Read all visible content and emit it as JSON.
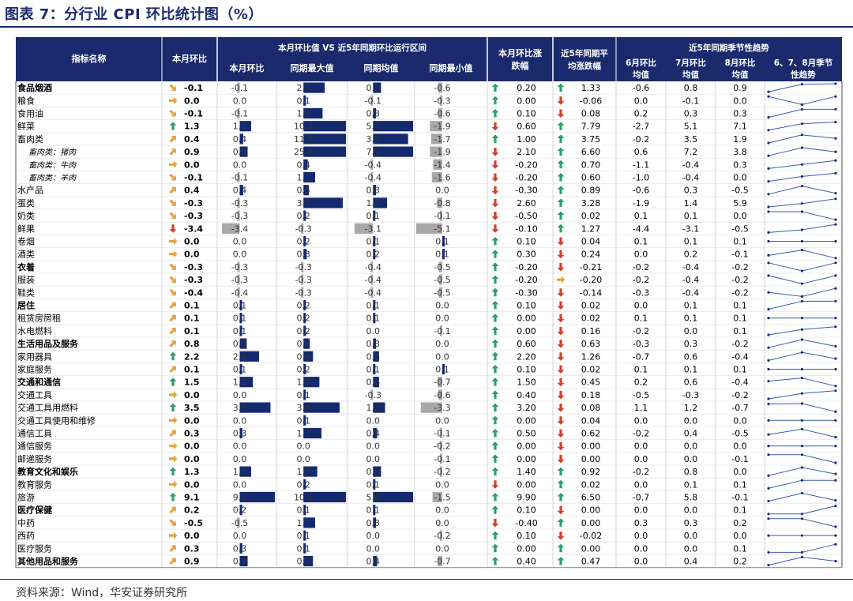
{
  "title": "图表 7：分行业 CPI 环比统计图（%）",
  "source": "资料来源：Wind，华安证券研究所",
  "colors": {
    "header": "#1a2a6c",
    "bar_pos": "#142a6e",
    "bar_neg": "#a8a8a8",
    "arrow_up": "#2e9e6e",
    "arrow_down": "#d1402a",
    "arrow_up_right": "#e8a23a",
    "arrow_right": "#e8a23a",
    "arrow_down_right": "#e8a23a"
  },
  "headers": {
    "name": "指标名称",
    "current": "本月环比",
    "group1": "本月环比值 VS 近5年同期环比运行区间",
    "g1_cols": [
      "本月环比",
      "同期最大值",
      "同期均值",
      "同期最小值"
    ],
    "diff": "本月环比涨跌幅",
    "avg5": "近5年同期平均涨跌幅",
    "group2": "近5年同期季节性趋势",
    "g2_cols": [
      "6月环比均值",
      "7月环比均值",
      "8月环比均值",
      "6、7、8月季节性趋势"
    ]
  },
  "rows": [
    {
      "name": "食品烟酒",
      "bold": true,
      "indent": false,
      "cur": "-0.1",
      "arrow": "down-right",
      "c1": "-0.1",
      "c2": "2.0",
      "c3": "0.8",
      "c4": "-0.6",
      "diff_dir": "up",
      "diff": "0.20",
      "avg_dir": "up",
      "avg": "1.33",
      "m6": "-0.6",
      "m7": "0.8",
      "m8": "0.9"
    },
    {
      "name": "粮食",
      "bold": false,
      "indent": false,
      "cur": "0.0",
      "arrow": "right",
      "c1": "0.0",
      "c2": "0.1",
      "c3": "-0.1",
      "c4": "-0.3",
      "diff_dir": "up",
      "diff": "0.00",
      "avg_dir": "down",
      "avg": "-0.06",
      "m6": "0.0",
      "m7": "-0.1",
      "m8": "0.0"
    },
    {
      "name": "食用油",
      "bold": false,
      "indent": false,
      "cur": "-0.1",
      "arrow": "down-right",
      "c1": "-0.1",
      "c2": "1.8",
      "c3": "0.3",
      "c4": "-0.6",
      "diff_dir": "up",
      "diff": "0.10",
      "avg_dir": "down",
      "avg": "0.08",
      "m6": "0.2",
      "m7": "0.3",
      "m8": "0.3"
    },
    {
      "name": "鲜菜",
      "bold": false,
      "indent": false,
      "cur": "1.3",
      "arrow": "up",
      "c1": "1.3",
      "c2": "10.3",
      "c3": "5.1",
      "c4": "-1.9",
      "diff_dir": "down",
      "diff": "0.60",
      "avg_dir": "up",
      "avg": "7.79",
      "m6": "-2.7",
      "m7": "5.1",
      "m8": "7.1"
    },
    {
      "name": "畜肉类",
      "bold": false,
      "indent": false,
      "cur": "0.4",
      "arrow": "up-right",
      "c1": "0.4",
      "c2": "11.8",
      "c3": "3.5",
      "c4": "-1.7",
      "diff_dir": "up",
      "diff": "1.00",
      "avg_dir": "up",
      "avg": "3.75",
      "m6": "-0.2",
      "m7": "3.5",
      "m8": "1.9"
    },
    {
      "name": "畜肉类：猪肉",
      "bold": false,
      "indent": true,
      "cur": "0.9",
      "arrow": "up-right",
      "c1": "0.9",
      "c2": "25.6",
      "c3": "7.2",
      "c4": "-1.9",
      "diff_dir": "down",
      "diff": "2.10",
      "avg_dir": "up",
      "avg": "6.60",
      "m6": "0.6",
      "m7": "7.2",
      "m8": "3.8"
    },
    {
      "name": "畜肉类：牛肉",
      "bold": false,
      "indent": true,
      "cur": "0.0",
      "arrow": "right",
      "c1": "0.0",
      "c2": "0.4",
      "c3": "-0.4",
      "c4": "-1.4",
      "diff_dir": "down",
      "diff": "-0.20",
      "avg_dir": "up",
      "avg": "0.70",
      "m6": "-1.1",
      "m7": "-0.4",
      "m8": "0.3"
    },
    {
      "name": "畜肉类：羊肉",
      "bold": false,
      "indent": true,
      "cur": "-0.1",
      "arrow": "down-right",
      "c1": "-0.1",
      "c2": "1.1",
      "c3": "-0.4",
      "c4": "-1.6",
      "diff_dir": "down",
      "diff": "-0.20",
      "avg_dir": "up",
      "avg": "0.60",
      "m6": "-1.0",
      "m7": "-0.4",
      "m8": "0.0"
    },
    {
      "name": "水产品",
      "bold": false,
      "indent": false,
      "cur": "0.4",
      "arrow": "up-right",
      "c1": "0.4",
      "c2": "0.5",
      "c3": "0.3",
      "c4": "0.0",
      "diff_dir": "down",
      "diff": "-0.30",
      "avg_dir": "up",
      "avg": "0.89",
      "m6": "-0.6",
      "m7": "0.3",
      "m8": "-0.5"
    },
    {
      "name": "蛋类",
      "bold": false,
      "indent": false,
      "cur": "-0.3",
      "arrow": "down-right",
      "c1": "-0.3",
      "c2": "3.7",
      "c3": "1.4",
      "c4": "-0.8",
      "diff_dir": "down",
      "diff": "2.60",
      "avg_dir": "up",
      "avg": "3.28",
      "m6": "-1.9",
      "m7": "1.4",
      "m8": "5.9"
    },
    {
      "name": "奶类",
      "bold": false,
      "indent": false,
      "cur": "-0.3",
      "arrow": "down-right",
      "c1": "-0.3",
      "c2": "0.2",
      "c3": "0.1",
      "c4": "-0.1",
      "diff_dir": "down",
      "diff": "-0.50",
      "avg_dir": "up",
      "avg": "0.02",
      "m6": "0.1",
      "m7": "0.1",
      "m8": "0.0"
    },
    {
      "name": "鲜果",
      "bold": false,
      "indent": false,
      "cur": "-3.4",
      "arrow": "down",
      "c1": "-3.4",
      "c2": "-0.3",
      "c3": "-3.1",
      "c4": "-5.1",
      "diff_dir": "down",
      "diff": "-0.10",
      "avg_dir": "up",
      "avg": "1.27",
      "m6": "-4.4",
      "m7": "-3.1",
      "m8": "-0.5"
    },
    {
      "name": "卷烟",
      "bold": false,
      "indent": false,
      "cur": "0.0",
      "arrow": "right",
      "c1": "0.0",
      "c2": "0.2",
      "c3": "0.1",
      "c4": "0.1",
      "diff_dir": "up",
      "diff": "0.10",
      "avg_dir": "down",
      "avg": "0.04",
      "m6": "0.1",
      "m7": "0.1",
      "m8": "0.1"
    },
    {
      "name": "酒类",
      "bold": false,
      "indent": false,
      "cur": "0.0",
      "arrow": "right",
      "c1": "0.0",
      "c2": "0.3",
      "c3": "0.2",
      "c4": "0.1",
      "diff_dir": "up",
      "diff": "0.30",
      "avg_dir": "down",
      "avg": "0.24",
      "m6": "0.0",
      "m7": "0.2",
      "m8": "-0.1"
    },
    {
      "name": "衣着",
      "bold": true,
      "indent": false,
      "cur": "-0.3",
      "arrow": "down-right",
      "c1": "-0.3",
      "c2": "-0.3",
      "c3": "-0.4",
      "c4": "-0.5",
      "diff_dir": "up",
      "diff": "-0.20",
      "avg_dir": "down",
      "avg": "-0.21",
      "m6": "-0.2",
      "m7": "-0.4",
      "m8": "-0.2"
    },
    {
      "name": "服装",
      "bold": false,
      "indent": false,
      "cur": "-0.3",
      "arrow": "down-right",
      "c1": "-0.3",
      "c2": "-0.3",
      "c3": "-0.4",
      "c4": "-0.5",
      "diff_dir": "up",
      "diff": "-0.20",
      "avg_dir": "right",
      "avg": "-0.20",
      "m6": "-0.2",
      "m7": "-0.4",
      "m8": "-0.2"
    },
    {
      "name": "鞋类",
      "bold": false,
      "indent": false,
      "cur": "-0.4",
      "arrow": "down-right",
      "c1": "-0.4",
      "c2": "-0.3",
      "c3": "-0.4",
      "c4": "-0.5",
      "diff_dir": "up",
      "diff": "-0.30",
      "avg_dir": "down",
      "avg": "-0.14",
      "m6": "-0.3",
      "m7": "-0.4",
      "m8": "-0.2"
    },
    {
      "name": "居住",
      "bold": true,
      "indent": false,
      "cur": "0.1",
      "arrow": "up-right",
      "c1": "0.1",
      "c2": "0.2",
      "c3": "0.1",
      "c4": "0.0",
      "diff_dir": "up",
      "diff": "0.10",
      "avg_dir": "down",
      "avg": "0.02",
      "m6": "0.0",
      "m7": "0.1",
      "m8": "0.1"
    },
    {
      "name": "租赁房房租",
      "bold": false,
      "indent": false,
      "cur": "0.1",
      "arrow": "up-right",
      "c1": "0.1",
      "c2": "0.2",
      "c3": "0.1",
      "c4": "0.0",
      "diff_dir": "up",
      "diff": "0.00",
      "avg_dir": "down",
      "avg": "0.02",
      "m6": "0.1",
      "m7": "0.1",
      "m8": "0.1"
    },
    {
      "name": "水电燃料",
      "bold": false,
      "indent": false,
      "cur": "0.1",
      "arrow": "up-right",
      "c1": "0.1",
      "c2": "0.2",
      "c3": "0.0",
      "c4": "-0.1",
      "diff_dir": "up",
      "diff": "0.00",
      "avg_dir": "down",
      "avg": "0.16",
      "m6": "-0.2",
      "m7": "0.0",
      "m8": "0.1"
    },
    {
      "name": "生活用品及服务",
      "bold": true,
      "indent": false,
      "cur": "0.8",
      "arrow": "up-right",
      "c1": "0.8",
      "c2": "0.6",
      "c3": "0.3",
      "c4": "0.0",
      "diff_dir": "up",
      "diff": "0.60",
      "avg_dir": "down",
      "avg": "0.63",
      "m6": "-0.3",
      "m7": "0.3",
      "m8": "-0.2"
    },
    {
      "name": "家用器具",
      "bold": false,
      "indent": false,
      "cur": "2.2",
      "arrow": "up",
      "c1": "2.2",
      "c2": "0.9",
      "c3": "0.6",
      "c4": "0.0",
      "diff_dir": "up",
      "diff": "2.20",
      "avg_dir": "down",
      "avg": "1.26",
      "m6": "-0.7",
      "m7": "0.6",
      "m8": "-0.4"
    },
    {
      "name": "家庭服务",
      "bold": false,
      "indent": false,
      "cur": "0.1",
      "arrow": "up-right",
      "c1": "0.1",
      "c2": "0.2",
      "c3": "0.1",
      "c4": "0.1",
      "diff_dir": "up",
      "diff": "0.10",
      "avg_dir": "down",
      "avg": "0.02",
      "m6": "0.1",
      "m7": "0.1",
      "m8": "0.1"
    },
    {
      "name": "交通和通信",
      "bold": true,
      "indent": false,
      "cur": "1.5",
      "arrow": "up",
      "c1": "1.5",
      "c2": "1.5",
      "c3": "0.6",
      "c4": "-0.7",
      "diff_dir": "up",
      "diff": "1.50",
      "avg_dir": "down",
      "avg": "0.45",
      "m6": "0.2",
      "m7": "0.6",
      "m8": "-0.4"
    },
    {
      "name": "交通工具",
      "bold": false,
      "indent": false,
      "cur": "0.0",
      "arrow": "right",
      "c1": "0.0",
      "c2": "0.1",
      "c3": "-0.3",
      "c4": "-0.6",
      "diff_dir": "up",
      "diff": "0.40",
      "avg_dir": "down",
      "avg": "0.18",
      "m6": "-0.5",
      "m7": "-0.3",
      "m8": "-0.2"
    },
    {
      "name": "交通工具用燃料",
      "bold": false,
      "indent": false,
      "cur": "3.5",
      "arrow": "up",
      "c1": "3.5",
      "c2": "3.4",
      "c3": "1.2",
      "c4": "-3.3",
      "diff_dir": "up",
      "diff": "3.20",
      "avg_dir": "down",
      "avg": "0.08",
      "m6": "1.1",
      "m7": "1.2",
      "m8": "-0.7"
    },
    {
      "name": "交通工具使用和维修",
      "bold": false,
      "indent": false,
      "cur": "0.0",
      "arrow": "right",
      "c1": "0.0",
      "c2": "0.1",
      "c3": "0.0",
      "c4": "0.0",
      "diff_dir": "up",
      "diff": "0.00",
      "avg_dir": "down",
      "avg": "0.04",
      "m6": "0.0",
      "m7": "0.0",
      "m8": "0.0"
    },
    {
      "name": "通信工具",
      "bold": false,
      "indent": false,
      "cur": "0.3",
      "arrow": "up-right",
      "c1": "0.3",
      "c2": "1.7",
      "c3": "0.4",
      "c4": "-0.1",
      "diff_dir": "up",
      "diff": "0.50",
      "avg_dir": "down",
      "avg": "0.62",
      "m6": "-0.2",
      "m7": "0.4",
      "m8": "-0.5"
    },
    {
      "name": "通信服务",
      "bold": false,
      "indent": false,
      "cur": "0.0",
      "arrow": "right",
      "c1": "0.0",
      "c2": "0.0",
      "c3": "0.0",
      "c4": "-0.2",
      "diff_dir": "up",
      "diff": "0.00",
      "avg_dir": "down",
      "avg": "0.00",
      "m6": "0.0",
      "m7": "0.0",
      "m8": "0.0"
    },
    {
      "name": "邮递服务",
      "bold": false,
      "indent": false,
      "cur": "0.0",
      "arrow": "right",
      "c1": "0.0",
      "c2": "0.0",
      "c3": "0.0",
      "c4": "-0.1",
      "diff_dir": "up",
      "diff": "0.00",
      "avg_dir": "down",
      "avg": "0.00",
      "m6": "0.0",
      "m7": "0.0",
      "m8": "-0.1"
    },
    {
      "name": "教育文化和娱乐",
      "bold": true,
      "indent": false,
      "cur": "1.3",
      "arrow": "up",
      "c1": "1.3",
      "c2": "1.3",
      "c3": "0.8",
      "c4": "-0.2",
      "diff_dir": "up",
      "diff": "1.40",
      "avg_dir": "up",
      "avg": "0.92",
      "m6": "-0.2",
      "m7": "0.8",
      "m8": "0.0"
    },
    {
      "name": "教育服务",
      "bold": false,
      "indent": false,
      "cur": "0.0",
      "arrow": "right",
      "c1": "0.0",
      "c2": "0.2",
      "c3": "0.1",
      "c4": "0.0",
      "diff_dir": "down",
      "diff": "0.00",
      "avg_dir": "up",
      "avg": "0.02",
      "m6": "0.0",
      "m7": "0.1",
      "m8": "0.1"
    },
    {
      "name": "旅游",
      "bold": false,
      "indent": false,
      "cur": "9.1",
      "arrow": "up",
      "c1": "9.1",
      "c2": "10.1",
      "c3": "5.8",
      "c4": "-1.5",
      "diff_dir": "up",
      "diff": "9.90",
      "avg_dir": "up",
      "avg": "6.50",
      "m6": "-0.7",
      "m7": "5.8",
      "m8": "-0.1"
    },
    {
      "name": "医疗保健",
      "bold": true,
      "indent": false,
      "cur": "0.2",
      "arrow": "up-right",
      "c1": "0.2",
      "c2": "0.1",
      "c3": "0.1",
      "c4": "0.0",
      "diff_dir": "up",
      "diff": "0.10",
      "avg_dir": "down",
      "avg": "0.00",
      "m6": "0.0",
      "m7": "0.0",
      "m8": "0.1"
    },
    {
      "name": "中药",
      "bold": false,
      "indent": false,
      "cur": "-0.5",
      "arrow": "down-right",
      "c1": "-0.5",
      "c2": "1.1",
      "c3": "0.3",
      "c4": "0.0",
      "diff_dir": "down",
      "diff": "-0.40",
      "avg_dir": "up",
      "avg": "0.00",
      "m6": "0.3",
      "m7": "0.3",
      "m8": "0.2"
    },
    {
      "name": "西药",
      "bold": false,
      "indent": false,
      "cur": "0.0",
      "arrow": "right",
      "c1": "0.0",
      "c2": "0.1",
      "c3": "0.0",
      "c4": "-0.2",
      "diff_dir": "up",
      "diff": "0.10",
      "avg_dir": "down",
      "avg": "-0.02",
      "m6": "0.0",
      "m7": "0.0",
      "m8": "0.0"
    },
    {
      "name": "医疗服务",
      "bold": false,
      "indent": false,
      "cur": "0.3",
      "arrow": "up-right",
      "c1": "0.3",
      "c2": "0.1",
      "c3": "0.0",
      "c4": "0.0",
      "diff_dir": "up",
      "diff": "0.00",
      "avg_dir": "up",
      "avg": "0.00",
      "m6": "0.0",
      "m7": "0.0",
      "m8": "0.1"
    },
    {
      "name": "其他用品和服务",
      "bold": true,
      "indent": false,
      "cur": "0.9",
      "arrow": "up-right",
      "c1": "0.9",
      "c2": "0.9",
      "c3": "0.4",
      "c4": "-0.7",
      "diff_dir": "up",
      "diff": "0.40",
      "avg_dir": "up",
      "avg": "0.47",
      "m6": "0.0",
      "m7": "0.4",
      "m8": "0.2"
    }
  ]
}
